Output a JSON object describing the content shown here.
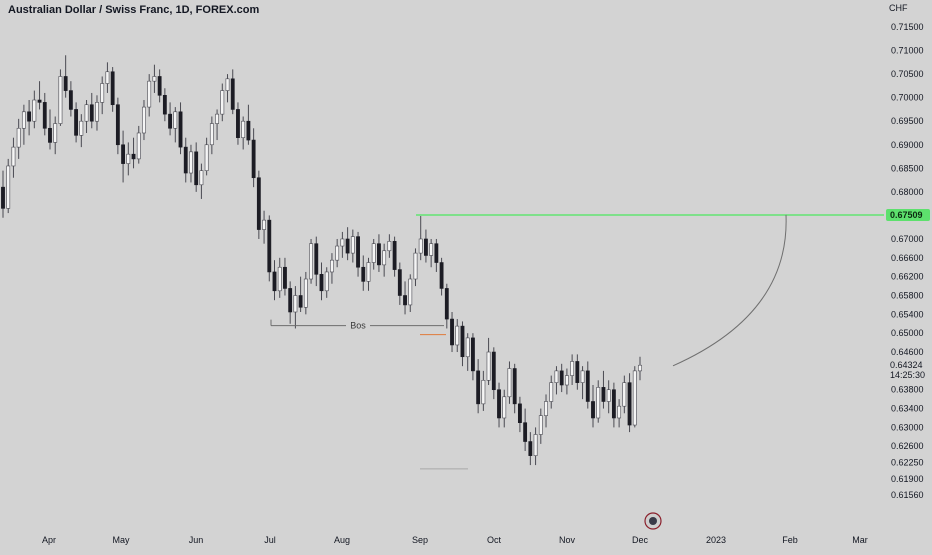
{
  "header": {
    "title": "Australian Dollar / Swiss Franc, 1D, FOREX.com"
  },
  "colors": {
    "background": "#d3d3d3",
    "candle_up_body": "#f5f5f5",
    "candle_down_body": "#1c1c24",
    "wick": "#4a4a52",
    "level_line": "#7ee08a",
    "level_badge": "#5de06d",
    "bos_line": "#6d6d6d",
    "orange_mark": "#e07a3a",
    "projection_curve": "#6f6f6f",
    "axis_text": "#131722"
  },
  "chart_data": {
    "type": "candlestick",
    "symbol": "Australian Dollar / Swiss Franc",
    "interval": "1D",
    "source": "FOREX.com",
    "currency_label": "CHF",
    "y_ticks": [
      "0.71500",
      "0.71000",
      "0.70500",
      "0.70000",
      "0.69500",
      "0.69000",
      "0.68500",
      "0.68000",
      "0.67000",
      "0.66600",
      "0.66200",
      "0.65800",
      "0.65400",
      "0.65000",
      "0.64600",
      "0.63800",
      "0.63400",
      "0.63000",
      "0.62600",
      "0.62250",
      "0.61900",
      "0.61560"
    ],
    "x_ticks": [
      "Apr",
      "May",
      "Jun",
      "Jul",
      "Aug",
      "Sep",
      "Oct",
      "Nov",
      "Dec",
      "2023",
      "Feb",
      "Mar"
    ],
    "last_price": "0.64324",
    "countdown": "14:25:30",
    "level_price": "0.67509",
    "annotations": [
      {
        "type": "horizontal_level",
        "price": 0.67509,
        "color": "green"
      },
      {
        "type": "bos",
        "label": "Bos",
        "price": 0.6516
      },
      {
        "type": "projection_curve",
        "from_price": 0.6435,
        "to_price": 0.6751
      }
    ],
    "candles": [
      {
        "o": 0.681,
        "h": 0.6845,
        "l": 0.6745,
        "c": 0.6765
      },
      {
        "o": 0.6765,
        "h": 0.687,
        "l": 0.6755,
        "c": 0.6855
      },
      {
        "o": 0.6855,
        "h": 0.6915,
        "l": 0.683,
        "c": 0.6895
      },
      {
        "o": 0.6895,
        "h": 0.6955,
        "l": 0.687,
        "c": 0.6935
      },
      {
        "o": 0.6935,
        "h": 0.6985,
        "l": 0.69,
        "c": 0.697
      },
      {
        "o": 0.697,
        "h": 0.6995,
        "l": 0.692,
        "c": 0.695
      },
      {
        "o": 0.695,
        "h": 0.7015,
        "l": 0.6935,
        "c": 0.6995
      },
      {
        "o": 0.6995,
        "h": 0.7035,
        "l": 0.6975,
        "c": 0.699
      },
      {
        "o": 0.699,
        "h": 0.701,
        "l": 0.692,
        "c": 0.6935
      },
      {
        "o": 0.6935,
        "h": 0.6975,
        "l": 0.689,
        "c": 0.6905
      },
      {
        "o": 0.6905,
        "h": 0.696,
        "l": 0.688,
        "c": 0.6945
      },
      {
        "o": 0.6945,
        "h": 0.706,
        "l": 0.694,
        "c": 0.7045
      },
      {
        "o": 0.7045,
        "h": 0.709,
        "l": 0.7,
        "c": 0.7015
      },
      {
        "o": 0.7015,
        "h": 0.7035,
        "l": 0.696,
        "c": 0.6975
      },
      {
        "o": 0.6975,
        "h": 0.699,
        "l": 0.6905,
        "c": 0.692
      },
      {
        "o": 0.692,
        "h": 0.6965,
        "l": 0.6895,
        "c": 0.695
      },
      {
        "o": 0.695,
        "h": 0.6995,
        "l": 0.6925,
        "c": 0.6985
      },
      {
        "o": 0.6985,
        "h": 0.701,
        "l": 0.6935,
        "c": 0.695
      },
      {
        "o": 0.695,
        "h": 0.7005,
        "l": 0.693,
        "c": 0.699
      },
      {
        "o": 0.699,
        "h": 0.7045,
        "l": 0.6965,
        "c": 0.703
      },
      {
        "o": 0.703,
        "h": 0.7075,
        "l": 0.701,
        "c": 0.7055
      },
      {
        "o": 0.7055,
        "h": 0.7065,
        "l": 0.697,
        "c": 0.6985
      },
      {
        "o": 0.6985,
        "h": 0.7,
        "l": 0.688,
        "c": 0.69
      },
      {
        "o": 0.69,
        "h": 0.693,
        "l": 0.682,
        "c": 0.686
      },
      {
        "o": 0.686,
        "h": 0.6905,
        "l": 0.6835,
        "c": 0.688
      },
      {
        "o": 0.688,
        "h": 0.6915,
        "l": 0.685,
        "c": 0.687
      },
      {
        "o": 0.687,
        "h": 0.694,
        "l": 0.686,
        "c": 0.6925
      },
      {
        "o": 0.6925,
        "h": 0.6995,
        "l": 0.691,
        "c": 0.698
      },
      {
        "o": 0.698,
        "h": 0.705,
        "l": 0.696,
        "c": 0.7035
      },
      {
        "o": 0.7035,
        "h": 0.707,
        "l": 0.701,
        "c": 0.7045
      },
      {
        "o": 0.7045,
        "h": 0.706,
        "l": 0.699,
        "c": 0.7005
      },
      {
        "o": 0.7005,
        "h": 0.702,
        "l": 0.695,
        "c": 0.6965
      },
      {
        "o": 0.6965,
        "h": 0.699,
        "l": 0.692,
        "c": 0.6935
      },
      {
        "o": 0.6935,
        "h": 0.698,
        "l": 0.6905,
        "c": 0.697
      },
      {
        "o": 0.697,
        "h": 0.699,
        "l": 0.688,
        "c": 0.6895
      },
      {
        "o": 0.6895,
        "h": 0.6915,
        "l": 0.682,
        "c": 0.684
      },
      {
        "o": 0.684,
        "h": 0.69,
        "l": 0.682,
        "c": 0.6885
      },
      {
        "o": 0.6885,
        "h": 0.6905,
        "l": 0.68,
        "c": 0.6815
      },
      {
        "o": 0.6815,
        "h": 0.686,
        "l": 0.6785,
        "c": 0.6845
      },
      {
        "o": 0.6845,
        "h": 0.6915,
        "l": 0.6835,
        "c": 0.69
      },
      {
        "o": 0.69,
        "h": 0.696,
        "l": 0.688,
        "c": 0.6945
      },
      {
        "o": 0.6945,
        "h": 0.6975,
        "l": 0.691,
        "c": 0.6965
      },
      {
        "o": 0.6965,
        "h": 0.703,
        "l": 0.695,
        "c": 0.7015
      },
      {
        "o": 0.7015,
        "h": 0.705,
        "l": 0.699,
        "c": 0.704
      },
      {
        "o": 0.704,
        "h": 0.706,
        "l": 0.6965,
        "c": 0.6975
      },
      {
        "o": 0.6975,
        "h": 0.699,
        "l": 0.69,
        "c": 0.6915
      },
      {
        "o": 0.6915,
        "h": 0.696,
        "l": 0.689,
        "c": 0.695
      },
      {
        "o": 0.695,
        "h": 0.6985,
        "l": 0.69,
        "c": 0.691
      },
      {
        "o": 0.691,
        "h": 0.6935,
        "l": 0.681,
        "c": 0.683
      },
      {
        "o": 0.683,
        "h": 0.6845,
        "l": 0.67,
        "c": 0.672
      },
      {
        "o": 0.672,
        "h": 0.676,
        "l": 0.669,
        "c": 0.674
      },
      {
        "o": 0.674,
        "h": 0.675,
        "l": 0.661,
        "c": 0.663
      },
      {
        "o": 0.663,
        "h": 0.6655,
        "l": 0.657,
        "c": 0.659
      },
      {
        "o": 0.659,
        "h": 0.666,
        "l": 0.6575,
        "c": 0.664
      },
      {
        "o": 0.664,
        "h": 0.666,
        "l": 0.658,
        "c": 0.6595
      },
      {
        "o": 0.6595,
        "h": 0.661,
        "l": 0.652,
        "c": 0.6545
      },
      {
        "o": 0.6545,
        "h": 0.66,
        "l": 0.651,
        "c": 0.658
      },
      {
        "o": 0.658,
        "h": 0.662,
        "l": 0.6545,
        "c": 0.6555
      },
      {
        "o": 0.6555,
        "h": 0.663,
        "l": 0.654,
        "c": 0.6615
      },
      {
        "o": 0.6615,
        "h": 0.67,
        "l": 0.6605,
        "c": 0.669
      },
      {
        "o": 0.669,
        "h": 0.6705,
        "l": 0.66,
        "c": 0.6625
      },
      {
        "o": 0.6625,
        "h": 0.665,
        "l": 0.657,
        "c": 0.659
      },
      {
        "o": 0.659,
        "h": 0.664,
        "l": 0.6575,
        "c": 0.663
      },
      {
        "o": 0.663,
        "h": 0.667,
        "l": 0.6605,
        "c": 0.6655
      },
      {
        "o": 0.6655,
        "h": 0.67,
        "l": 0.664,
        "c": 0.6685
      },
      {
        "o": 0.6685,
        "h": 0.6715,
        "l": 0.666,
        "c": 0.67
      },
      {
        "o": 0.67,
        "h": 0.6725,
        "l": 0.6655,
        "c": 0.667
      },
      {
        "o": 0.667,
        "h": 0.672,
        "l": 0.665,
        "c": 0.6705
      },
      {
        "o": 0.6705,
        "h": 0.6715,
        "l": 0.662,
        "c": 0.664
      },
      {
        "o": 0.664,
        "h": 0.6665,
        "l": 0.659,
        "c": 0.661
      },
      {
        "o": 0.661,
        "h": 0.666,
        "l": 0.659,
        "c": 0.665
      },
      {
        "o": 0.665,
        "h": 0.67,
        "l": 0.6635,
        "c": 0.669
      },
      {
        "o": 0.669,
        "h": 0.671,
        "l": 0.663,
        "c": 0.6645
      },
      {
        "o": 0.6645,
        "h": 0.669,
        "l": 0.662,
        "c": 0.6675
      },
      {
        "o": 0.6675,
        "h": 0.671,
        "l": 0.666,
        "c": 0.6695
      },
      {
        "o": 0.6695,
        "h": 0.6705,
        "l": 0.662,
        "c": 0.6635
      },
      {
        "o": 0.6635,
        "h": 0.665,
        "l": 0.656,
        "c": 0.658
      },
      {
        "o": 0.658,
        "h": 0.661,
        "l": 0.654,
        "c": 0.656
      },
      {
        "o": 0.656,
        "h": 0.6625,
        "l": 0.6545,
        "c": 0.6615
      },
      {
        "o": 0.6615,
        "h": 0.668,
        "l": 0.66,
        "c": 0.667
      },
      {
        "o": 0.667,
        "h": 0.675,
        "l": 0.6655,
        "c": 0.67
      },
      {
        "o": 0.67,
        "h": 0.672,
        "l": 0.665,
        "c": 0.6665
      },
      {
        "o": 0.6665,
        "h": 0.67,
        "l": 0.664,
        "c": 0.669
      },
      {
        "o": 0.669,
        "h": 0.67,
        "l": 0.663,
        "c": 0.665
      },
      {
        "o": 0.665,
        "h": 0.666,
        "l": 0.658,
        "c": 0.6595
      },
      {
        "o": 0.6595,
        "h": 0.6605,
        "l": 0.651,
        "c": 0.653
      },
      {
        "o": 0.653,
        "h": 0.6545,
        "l": 0.646,
        "c": 0.6475
      },
      {
        "o": 0.6475,
        "h": 0.653,
        "l": 0.646,
        "c": 0.6515
      },
      {
        "o": 0.6515,
        "h": 0.6525,
        "l": 0.643,
        "c": 0.645
      },
      {
        "o": 0.645,
        "h": 0.65,
        "l": 0.642,
        "c": 0.649
      },
      {
        "o": 0.649,
        "h": 0.65,
        "l": 0.64,
        "c": 0.642
      },
      {
        "o": 0.642,
        "h": 0.6445,
        "l": 0.633,
        "c": 0.635
      },
      {
        "o": 0.635,
        "h": 0.642,
        "l": 0.6335,
        "c": 0.64
      },
      {
        "o": 0.64,
        "h": 0.649,
        "l": 0.639,
        "c": 0.646
      },
      {
        "o": 0.646,
        "h": 0.647,
        "l": 0.636,
        "c": 0.638
      },
      {
        "o": 0.638,
        "h": 0.6395,
        "l": 0.63,
        "c": 0.632
      },
      {
        "o": 0.632,
        "h": 0.638,
        "l": 0.63,
        "c": 0.6365
      },
      {
        "o": 0.6365,
        "h": 0.644,
        "l": 0.635,
        "c": 0.6425
      },
      {
        "o": 0.6425,
        "h": 0.6435,
        "l": 0.633,
        "c": 0.635
      },
      {
        "o": 0.635,
        "h": 0.6365,
        "l": 0.629,
        "c": 0.631
      },
      {
        "o": 0.631,
        "h": 0.634,
        "l": 0.625,
        "c": 0.627
      },
      {
        "o": 0.627,
        "h": 0.629,
        "l": 0.622,
        "c": 0.624
      },
      {
        "o": 0.624,
        "h": 0.63,
        "l": 0.622,
        "c": 0.6285
      },
      {
        "o": 0.6285,
        "h": 0.634,
        "l": 0.6265,
        "c": 0.6325
      },
      {
        "o": 0.6325,
        "h": 0.637,
        "l": 0.63,
        "c": 0.6355
      },
      {
        "o": 0.6355,
        "h": 0.641,
        "l": 0.634,
        "c": 0.6395
      },
      {
        "o": 0.6395,
        "h": 0.643,
        "l": 0.637,
        "c": 0.642
      },
      {
        "o": 0.642,
        "h": 0.6435,
        "l": 0.6375,
        "c": 0.639
      },
      {
        "o": 0.639,
        "h": 0.6425,
        "l": 0.637,
        "c": 0.641
      },
      {
        "o": 0.641,
        "h": 0.6455,
        "l": 0.639,
        "c": 0.644
      },
      {
        "o": 0.644,
        "h": 0.6455,
        "l": 0.638,
        "c": 0.6395
      },
      {
        "o": 0.6395,
        "h": 0.643,
        "l": 0.636,
        "c": 0.642
      },
      {
        "o": 0.642,
        "h": 0.644,
        "l": 0.634,
        "c": 0.6355
      },
      {
        "o": 0.6355,
        "h": 0.639,
        "l": 0.63,
        "c": 0.632
      },
      {
        "o": 0.632,
        "h": 0.64,
        "l": 0.631,
        "c": 0.6385
      },
      {
        "o": 0.6385,
        "h": 0.642,
        "l": 0.634,
        "c": 0.6355
      },
      {
        "o": 0.6355,
        "h": 0.64,
        "l": 0.633,
        "c": 0.638
      },
      {
        "o": 0.638,
        "h": 0.6395,
        "l": 0.63,
        "c": 0.632
      },
      {
        "o": 0.632,
        "h": 0.636,
        "l": 0.63,
        "c": 0.6345
      },
      {
        "o": 0.6345,
        "h": 0.641,
        "l": 0.633,
        "c": 0.6395
      },
      {
        "o": 0.6395,
        "h": 0.6415,
        "l": 0.629,
        "c": 0.6305
      },
      {
        "o": 0.6305,
        "h": 0.643,
        "l": 0.63,
        "c": 0.642
      },
      {
        "o": 0.642,
        "h": 0.645,
        "l": 0.64,
        "c": 0.6432
      }
    ]
  },
  "projection": {
    "label": ""
  }
}
